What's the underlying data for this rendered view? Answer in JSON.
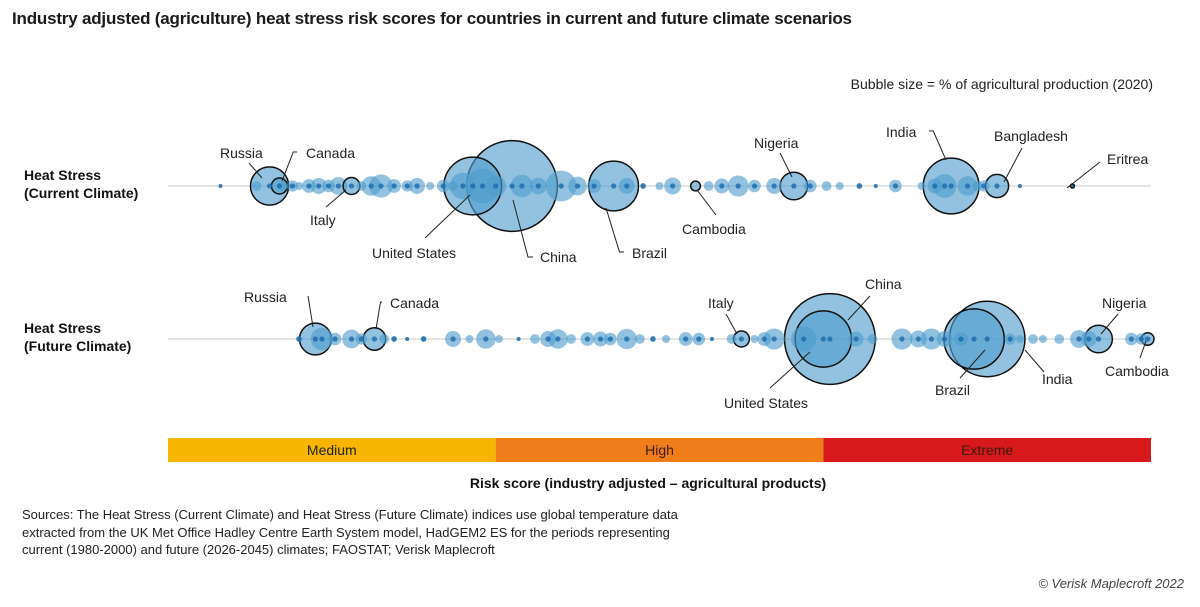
{
  "title": "Industry adjusted (agriculture) heat stress risk scores for countries in current and future climate scenarios",
  "bubble_note": "Bubble size = % of agricultural production (2020)",
  "sources": "Sources: The Heat Stress (Current Climate) and Heat Stress (Future Climate) indices use global temperature data extracted from the UK Met Office Hadley Centre Earth System model, HadGEM2 ES for the periods representing current (1980-2000) and future (2026-2045) climates; FAOSTAT; Verisk Maplecroft",
  "copyright": "© Verisk Maplecroft 2022",
  "colors": {
    "bubble_fill": "#4f9ccd",
    "bubble_dark": "#1f6fae",
    "medium": "#f7b500",
    "high": "#ef7d1a",
    "extreme": "#d7191c"
  },
  "chart_data": {
    "type": "scatter",
    "subtype": "bubble strip plot",
    "x_axis_label": "Risk score (industry adjusted – agricultural products)",
    "risk_bands": [
      {
        "label": "Medium",
        "from": 0,
        "to": 1,
        "color": "#f7b500"
      },
      {
        "label": "High",
        "from": 1,
        "to": 2,
        "color": "#ef7d1a"
      },
      {
        "label": "Extreme",
        "from": 2,
        "to": 3,
        "color": "#d7191c"
      }
    ],
    "series": [
      {
        "name": "Heat Stress\n(Current Climate)",
        "highlighted": [
          {
            "country": "Russia",
            "x": 0.31,
            "size": 4.6
          },
          {
            "country": "Canada",
            "x": 0.34,
            "size": 0.8
          },
          {
            "country": "Italy",
            "x": 0.56,
            "size": 0.9
          },
          {
            "country": "United States",
            "x": 0.93,
            "size": 10.5
          },
          {
            "country": "China",
            "x": 1.05,
            "size": 26.0
          },
          {
            "country": "Brazil",
            "x": 1.36,
            "size": 7.8
          },
          {
            "country": "Cambodia",
            "x": 1.61,
            "size": 0.3
          },
          {
            "country": "Nigeria",
            "x": 1.91,
            "size": 2.4
          },
          {
            "country": "India",
            "x": 2.39,
            "size": 9.8
          },
          {
            "country": "Bangladesh",
            "x": 2.53,
            "size": 1.7
          },
          {
            "country": "Eritrea",
            "x": 2.76,
            "size": 0.02
          }
        ],
        "others": [
          {
            "x": 0.16,
            "size": 0.05
          },
          {
            "x": 0.27,
            "size": 0.3
          },
          {
            "x": 0.35,
            "size": 0.3
          },
          {
            "x": 0.38,
            "size": 0.4
          },
          {
            "x": 0.4,
            "size": 0.2
          },
          {
            "x": 0.43,
            "size": 0.6
          },
          {
            "x": 0.46,
            "size": 0.8
          },
          {
            "x": 0.49,
            "size": 0.5
          },
          {
            "x": 0.52,
            "size": 1.0
          },
          {
            "x": 0.59,
            "size": 0.3
          },
          {
            "x": 0.62,
            "size": 1.2
          },
          {
            "x": 0.65,
            "size": 1.7
          },
          {
            "x": 0.69,
            "size": 0.6
          },
          {
            "x": 0.73,
            "size": 0.4
          },
          {
            "x": 0.76,
            "size": 0.8
          },
          {
            "x": 0.8,
            "size": 0.2
          },
          {
            "x": 0.84,
            "size": 0.5
          },
          {
            "x": 0.87,
            "size": 0.3
          },
          {
            "x": 0.9,
            "size": 2.2
          },
          {
            "x": 0.96,
            "size": 3.8
          },
          {
            "x": 1.0,
            "size": 1.4
          },
          {
            "x": 1.08,
            "size": 1.6
          },
          {
            "x": 1.13,
            "size": 0.9
          },
          {
            "x": 1.2,
            "size": 3.0
          },
          {
            "x": 1.25,
            "size": 1.1
          },
          {
            "x": 1.3,
            "size": 0.6
          },
          {
            "x": 1.4,
            "size": 0.8
          },
          {
            "x": 1.45,
            "size": 0.1
          },
          {
            "x": 1.5,
            "size": 0.2
          },
          {
            "x": 1.54,
            "size": 0.9
          },
          {
            "x": 1.65,
            "size": 0.3
          },
          {
            "x": 1.69,
            "size": 0.7
          },
          {
            "x": 1.74,
            "size": 1.4
          },
          {
            "x": 1.79,
            "size": 0.5
          },
          {
            "x": 1.85,
            "size": 0.8
          },
          {
            "x": 1.96,
            "size": 0.5
          },
          {
            "x": 2.01,
            "size": 0.3
          },
          {
            "x": 2.05,
            "size": 0.2
          },
          {
            "x": 2.11,
            "size": 0.1
          },
          {
            "x": 2.16,
            "size": 0.05
          },
          {
            "x": 2.22,
            "size": 0.5
          },
          {
            "x": 2.3,
            "size": 0.2
          },
          {
            "x": 2.34,
            "size": 0.7
          },
          {
            "x": 2.37,
            "size": 1.8
          },
          {
            "x": 2.44,
            "size": 1.2
          },
          {
            "x": 2.47,
            "size": 0.3
          },
          {
            "x": 2.49,
            "size": 0.4
          },
          {
            "x": 2.6,
            "size": 0.02
          }
        ]
      },
      {
        "name": "Heat Stress\n(Future Climate)",
        "highlighted": [
          {
            "country": "Russia",
            "x": 0.45,
            "size": 3.2
          },
          {
            "country": "Canada",
            "x": 0.63,
            "size": 1.6
          },
          {
            "country": "Italy",
            "x": 1.75,
            "size": 0.8
          },
          {
            "country": "United States",
            "x": 2.0,
            "size": 10.0
          },
          {
            "country": "China",
            "x": 2.02,
            "size": 26.0
          },
          {
            "country": "Brazil",
            "x": 2.46,
            "size": 11.5
          },
          {
            "country": "India",
            "x": 2.5,
            "size": 18.0
          },
          {
            "country": "Nigeria",
            "x": 2.84,
            "size": 2.4
          },
          {
            "country": "Cambodia",
            "x": 2.99,
            "size": 0.5
          }
        ],
        "others": [
          {
            "x": 0.4,
            "size": 0.1
          },
          {
            "x": 0.47,
            "size": 1.6
          },
          {
            "x": 0.51,
            "size": 0.5
          },
          {
            "x": 0.56,
            "size": 1.1
          },
          {
            "x": 0.59,
            "size": 0.4
          },
          {
            "x": 0.66,
            "size": 0.3
          },
          {
            "x": 0.69,
            "size": 0.1
          },
          {
            "x": 0.73,
            "size": 0.05
          },
          {
            "x": 0.78,
            "size": 0.1
          },
          {
            "x": 0.87,
            "size": 0.8
          },
          {
            "x": 0.92,
            "size": 0.2
          },
          {
            "x": 0.97,
            "size": 1.2
          },
          {
            "x": 1.01,
            "size": 0.2
          },
          {
            "x": 1.07,
            "size": 0.05
          },
          {
            "x": 1.12,
            "size": 0.3
          },
          {
            "x": 1.16,
            "size": 0.8
          },
          {
            "x": 1.19,
            "size": 1.2
          },
          {
            "x": 1.23,
            "size": 0.3
          },
          {
            "x": 1.28,
            "size": 0.6
          },
          {
            "x": 1.32,
            "size": 0.7
          },
          {
            "x": 1.35,
            "size": 0.5
          },
          {
            "x": 1.4,
            "size": 1.3
          },
          {
            "x": 1.44,
            "size": 0.3
          },
          {
            "x": 1.48,
            "size": 0.1
          },
          {
            "x": 1.52,
            "size": 0.2
          },
          {
            "x": 1.58,
            "size": 0.6
          },
          {
            "x": 1.62,
            "size": 0.5
          },
          {
            "x": 1.66,
            "size": 0.05
          },
          {
            "x": 1.72,
            "size": 0.3
          },
          {
            "x": 1.79,
            "size": 0.2
          },
          {
            "x": 1.82,
            "size": 0.6
          },
          {
            "x": 1.85,
            "size": 1.4
          },
          {
            "x": 1.94,
            "size": 2.0
          },
          {
            "x": 2.1,
            "size": 0.7
          },
          {
            "x": 2.15,
            "size": 0.3
          },
          {
            "x": 2.24,
            "size": 1.4
          },
          {
            "x": 2.29,
            "size": 0.9
          },
          {
            "x": 2.33,
            "size": 1.4
          },
          {
            "x": 2.37,
            "size": 0.8
          },
          {
            "x": 2.42,
            "size": 0.6
          },
          {
            "x": 2.57,
            "size": 0.4
          },
          {
            "x": 2.6,
            "size": 0.2
          },
          {
            "x": 2.64,
            "size": 0.3
          },
          {
            "x": 2.67,
            "size": 0.2
          },
          {
            "x": 2.72,
            "size": 0.3
          },
          {
            "x": 2.78,
            "size": 1.0
          },
          {
            "x": 2.81,
            "size": 0.8
          },
          {
            "x": 2.94,
            "size": 0.5
          },
          {
            "x": 2.97,
            "size": 0.4
          }
        ]
      }
    ]
  }
}
